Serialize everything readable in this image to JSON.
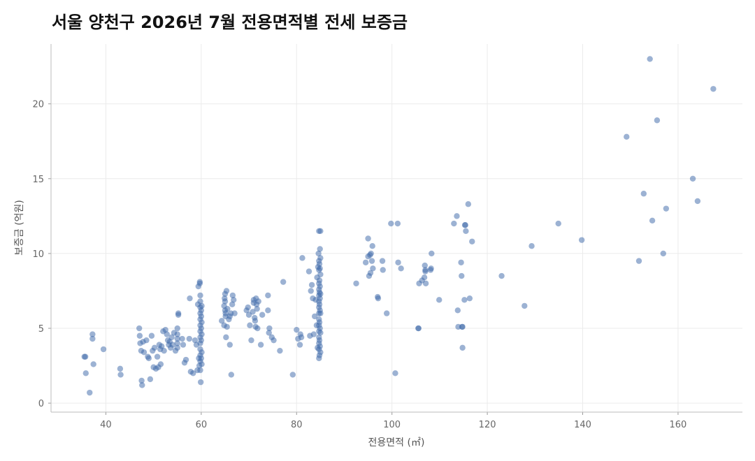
{
  "chart_data": {
    "type": "scatter",
    "title": "서울 양천구 2026년 7월 전용면적별 전세 보증금",
    "xlabel": "전용면적 (㎡)",
    "ylabel": "보증금 (억원)",
    "xlim": [
      28.5,
      173.5
    ],
    "ylim": [
      -0.6,
      24.0
    ],
    "xticks": [
      40,
      60,
      80,
      100,
      120,
      140,
      160
    ],
    "yticks": [
      0,
      5,
      10,
      15,
      20
    ],
    "grid": true,
    "point_color": "#3a65a8",
    "points": [
      [
        35.5,
        3.1
      ],
      [
        35.7,
        3.1
      ],
      [
        35.8,
        2.0
      ],
      [
        36.6,
        0.7
      ],
      [
        37.2,
        4.6
      ],
      [
        37.2,
        4.3
      ],
      [
        37.4,
        2.6
      ],
      [
        39.5,
        3.6
      ],
      [
        43.0,
        2.3
      ],
      [
        43.1,
        1.9
      ],
      [
        47.0,
        5.0
      ],
      [
        47.1,
        4.5
      ],
      [
        47.2,
        4.0
      ],
      [
        47.4,
        3.5
      ],
      [
        47.5,
        1.5
      ],
      [
        47.6,
        1.2
      ],
      [
        47.8,
        4.1
      ],
      [
        48.0,
        3.4
      ],
      [
        48.5,
        4.2
      ],
      [
        48.8,
        3.1
      ],
      [
        49.0,
        3.0
      ],
      [
        49.3,
        1.6
      ],
      [
        49.6,
        4.5
      ],
      [
        49.8,
        3.5
      ],
      [
        50.0,
        2.4
      ],
      [
        50.2,
        3.7
      ],
      [
        50.5,
        2.3
      ],
      [
        50.8,
        3.1
      ],
      [
        51.0,
        2.4
      ],
      [
        51.2,
        3.9
      ],
      [
        51.4,
        3.6
      ],
      [
        51.5,
        2.6
      ],
      [
        51.7,
        3.8
      ],
      [
        52.0,
        4.8
      ],
      [
        52.2,
        3.5
      ],
      [
        52.5,
        4.9
      ],
      [
        52.8,
        4.6
      ],
      [
        53.0,
        4.2
      ],
      [
        53.2,
        3.9
      ],
      [
        53.4,
        4.1
      ],
      [
        53.6,
        3.7
      ],
      [
        53.8,
        4.4
      ],
      [
        54.0,
        3.9
      ],
      [
        54.3,
        4.7
      ],
      [
        54.6,
        3.5
      ],
      [
        55.0,
        5.0
      ],
      [
        55.0,
        4.6
      ],
      [
        55.0,
        4.3
      ],
      [
        55.0,
        4.0
      ],
      [
        55.0,
        3.7
      ],
      [
        55.2,
        6.0
      ],
      [
        55.2,
        5.9
      ],
      [
        56.0,
        4.3
      ],
      [
        56.2,
        3.9
      ],
      [
        56.5,
        2.7
      ],
      [
        56.8,
        2.9
      ],
      [
        57.5,
        4.3
      ],
      [
        57.6,
        7.0
      ],
      [
        57.8,
        2.1
      ],
      [
        58.3,
        2.0
      ],
      [
        58.7,
        4.2
      ],
      [
        59.0,
        3.9
      ],
      [
        59.2,
        2.2
      ],
      [
        59.3,
        6.6
      ],
      [
        59.4,
        7.8
      ],
      [
        59.5,
        3.0
      ],
      [
        59.6,
        2.5
      ],
      [
        59.7,
        8.0
      ],
      [
        59.7,
        8.1
      ],
      [
        59.8,
        7.2
      ],
      [
        59.8,
        6.8
      ],
      [
        59.8,
        6.4
      ],
      [
        59.8,
        6.0
      ],
      [
        59.8,
        5.6
      ],
      [
        59.8,
        5.2
      ],
      [
        59.8,
        4.8
      ],
      [
        59.8,
        4.4
      ],
      [
        59.8,
        4.0
      ],
      [
        59.8,
        3.6
      ],
      [
        59.8,
        3.2
      ],
      [
        59.8,
        2.8
      ],
      [
        59.8,
        2.2
      ],
      [
        59.9,
        1.4
      ],
      [
        60.0,
        6.2
      ],
      [
        60.0,
        5.8
      ],
      [
        60.0,
        5.0
      ],
      [
        60.0,
        4.2
      ],
      [
        60.0,
        3.0
      ],
      [
        60.1,
        6.5
      ],
      [
        60.1,
        5.4
      ],
      [
        60.1,
        4.6
      ],
      [
        60.1,
        3.4
      ],
      [
        60.1,
        2.6
      ],
      [
        64.3,
        5.5
      ],
      [
        64.8,
        5.2
      ],
      [
        64.8,
        6.5
      ],
      [
        64.9,
        7.0
      ],
      [
        65.0,
        7.3
      ],
      [
        65.0,
        6.8
      ],
      [
        65.0,
        6.2
      ],
      [
        65.1,
        6.0
      ],
      [
        65.1,
        5.8
      ],
      [
        65.2,
        4.4
      ],
      [
        65.3,
        7.5
      ],
      [
        65.4,
        5.1
      ],
      [
        65.5,
        6.3
      ],
      [
        65.8,
        5.6
      ],
      [
        66.0,
        5.8
      ],
      [
        66.0,
        3.9
      ],
      [
        66.2,
        6.0
      ],
      [
        66.3,
        1.9
      ],
      [
        66.5,
        6.6
      ],
      [
        66.6,
        7.2
      ],
      [
        66.8,
        6.9
      ],
      [
        67.0,
        6.0
      ],
      [
        69.5,
        6.2
      ],
      [
        69.8,
        6.4
      ],
      [
        70.0,
        5.9
      ],
      [
        70.2,
        5.2
      ],
      [
        70.5,
        4.2
      ],
      [
        70.8,
        6.1
      ],
      [
        71.0,
        6.9
      ],
      [
        71.0,
        6.7
      ],
      [
        71.2,
        5.7
      ],
      [
        71.3,
        5.5
      ],
      [
        71.4,
        5.1
      ],
      [
        71.5,
        7.0
      ],
      [
        71.6,
        6.6
      ],
      [
        71.7,
        6.3
      ],
      [
        71.8,
        5.0
      ],
      [
        72.0,
        6.8
      ],
      [
        72.5,
        3.9
      ],
      [
        72.8,
        5.9
      ],
      [
        74.0,
        7.2
      ],
      [
        74.0,
        6.2
      ],
      [
        74.2,
        4.7
      ],
      [
        74.3,
        5.0
      ],
      [
        74.8,
        4.4
      ],
      [
        75.2,
        4.2
      ],
      [
        76.5,
        3.5
      ],
      [
        77.2,
        8.1
      ],
      [
        79.2,
        1.9
      ],
      [
        80.0,
        4.9
      ],
      [
        80.3,
        4.3
      ],
      [
        80.7,
        3.9
      ],
      [
        80.8,
        4.6
      ],
      [
        81.0,
        4.4
      ],
      [
        81.2,
        9.7
      ],
      [
        82.6,
        8.8
      ],
      [
        82.8,
        4.5
      ],
      [
        83.0,
        7.5
      ],
      [
        83.2,
        7.9
      ],
      [
        83.4,
        7.0
      ],
      [
        83.6,
        4.6
      ],
      [
        83.8,
        5.8
      ],
      [
        84.0,
        6.9
      ],
      [
        84.2,
        5.2
      ],
      [
        84.3,
        8.4
      ],
      [
        84.4,
        3.7
      ],
      [
        84.5,
        9.1
      ],
      [
        84.6,
        10.0
      ],
      [
        84.7,
        11.5
      ],
      [
        84.7,
        9.5
      ],
      [
        84.7,
        8.9
      ],
      [
        84.7,
        8.0
      ],
      [
        84.7,
        7.6
      ],
      [
        84.7,
        7.2
      ],
      [
        84.7,
        6.8
      ],
      [
        84.7,
        6.4
      ],
      [
        84.7,
        6.0
      ],
      [
        84.7,
        5.6
      ],
      [
        84.7,
        5.2
      ],
      [
        84.7,
        4.8
      ],
      [
        84.7,
        4.4
      ],
      [
        84.7,
        4.0
      ],
      [
        84.7,
        3.6
      ],
      [
        84.7,
        3.0
      ],
      [
        84.8,
        9.3
      ],
      [
        84.8,
        8.2
      ],
      [
        84.8,
        7.4
      ],
      [
        84.8,
        6.6
      ],
      [
        84.8,
        5.4
      ],
      [
        84.8,
        4.2
      ],
      [
        84.8,
        3.2
      ],
      [
        84.9,
        10.3
      ],
      [
        84.9,
        9.0
      ],
      [
        84.9,
        7.8
      ],
      [
        84.9,
        7.0
      ],
      [
        84.9,
        6.2
      ],
      [
        84.9,
        5.0
      ],
      [
        84.9,
        3.8
      ],
      [
        85.0,
        11.5
      ],
      [
        85.0,
        9.7
      ],
      [
        85.0,
        8.6
      ],
      [
        85.0,
        7.3
      ],
      [
        85.0,
        6.0
      ],
      [
        85.0,
        4.7
      ],
      [
        85.0,
        3.4
      ],
      [
        92.5,
        8.0
      ],
      [
        94.5,
        9.4
      ],
      [
        95.0,
        11.0
      ],
      [
        95.0,
        9.8
      ],
      [
        95.2,
        8.5
      ],
      [
        95.4,
        9.9
      ],
      [
        95.5,
        8.7
      ],
      [
        95.6,
        10.0
      ],
      [
        95.8,
        9.5
      ],
      [
        95.9,
        10.5
      ],
      [
        96.0,
        9.0
      ],
      [
        97.0,
        7.1
      ],
      [
        97.1,
        7.0
      ],
      [
        98.0,
        9.5
      ],
      [
        98.1,
        8.9
      ],
      [
        98.9,
        6.0
      ],
      [
        99.8,
        12.0
      ],
      [
        100.7,
        2.0
      ],
      [
        101.2,
        12.0
      ],
      [
        101.3,
        9.4
      ],
      [
        101.9,
        9.0
      ],
      [
        105.5,
        5.0
      ],
      [
        105.6,
        5.0
      ],
      [
        105.7,
        8.0
      ],
      [
        106.3,
        8.2
      ],
      [
        106.8,
        8.4
      ],
      [
        106.9,
        9.2
      ],
      [
        107.0,
        8.9
      ],
      [
        107.0,
        8.8
      ],
      [
        107.1,
        8.0
      ],
      [
        108.1,
        8.9
      ],
      [
        108.2,
        9.0
      ],
      [
        108.3,
        10.0
      ],
      [
        109.9,
        6.9
      ],
      [
        113.0,
        12.0
      ],
      [
        113.6,
        12.5
      ],
      [
        113.8,
        6.2
      ],
      [
        113.9,
        5.1
      ],
      [
        114.5,
        9.4
      ],
      [
        114.6,
        8.5
      ],
      [
        114.7,
        5.1
      ],
      [
        114.8,
        5.1
      ],
      [
        114.8,
        3.7
      ],
      [
        115.2,
        6.9
      ],
      [
        115.3,
        11.9
      ],
      [
        115.4,
        11.9
      ],
      [
        115.5,
        11.5
      ],
      [
        116.0,
        13.3
      ],
      [
        116.3,
        7.0
      ],
      [
        116.8,
        10.8
      ],
      [
        123.0,
        8.5
      ],
      [
        127.8,
        6.5
      ],
      [
        129.3,
        10.5
      ],
      [
        134.9,
        12.0
      ],
      [
        139.8,
        10.9
      ],
      [
        149.2,
        17.8
      ],
      [
        151.8,
        9.5
      ],
      [
        152.8,
        14.0
      ],
      [
        154.1,
        23.0
      ],
      [
        154.6,
        12.2
      ],
      [
        155.6,
        18.9
      ],
      [
        156.9,
        10.0
      ],
      [
        157.5,
        13.0
      ],
      [
        163.1,
        15.0
      ],
      [
        164.1,
        13.5
      ],
      [
        167.4,
        21.0
      ]
    ]
  }
}
